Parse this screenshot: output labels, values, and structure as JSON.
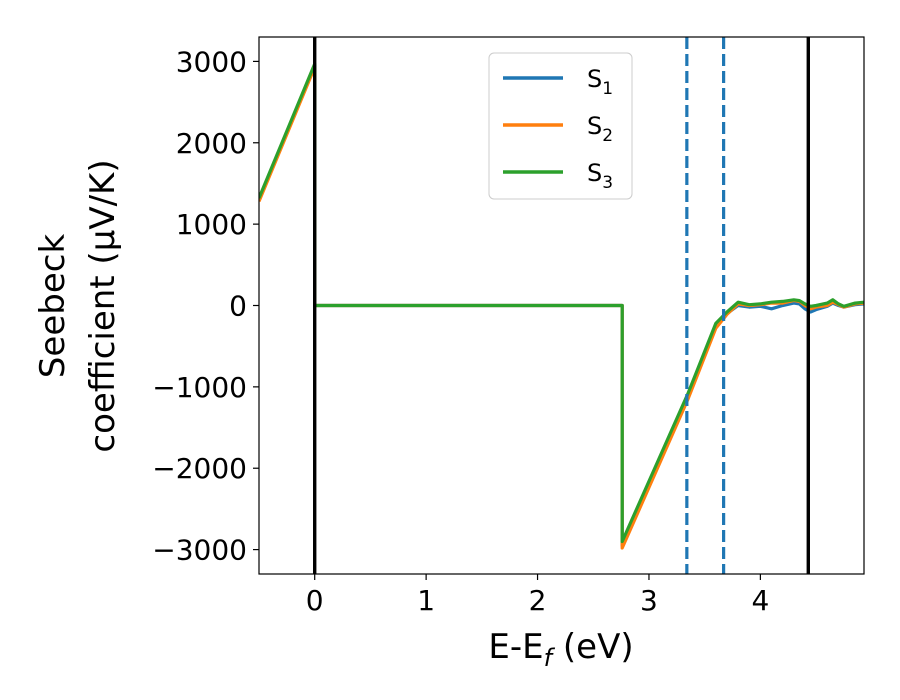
{
  "chart_data": {
    "type": "line",
    "xlabel": "E-E",
    "xlabel_sub": "f",
    "xlabel_unit": " (eV)",
    "ylabel_line1": "Seebeck",
    "ylabel_line2": "coefficient  (μV/K)",
    "xlim": [
      -0.5,
      4.93
    ],
    "ylim": [
      -3300,
      3300
    ],
    "xticks": [
      0,
      1,
      2,
      3,
      4
    ],
    "xtick_labels": [
      "0",
      "1",
      "2",
      "3",
      "4"
    ],
    "yticks": [
      3000,
      2000,
      1000,
      0,
      -1000,
      -2000,
      -3000
    ],
    "ytick_labels": [
      "3000",
      "2000",
      "1000",
      "0",
      "−1000",
      "−2000",
      "−3000"
    ],
    "grid": false,
    "legend_placement": "top-center",
    "series": [
      {
        "name": "S",
        "sub": "1",
        "color": "#1f77b4",
        "points": [
          [
            -0.5,
            1300
          ],
          [
            0,
            2950
          ],
          [
            0,
            0
          ],
          [
            2.76,
            0
          ],
          [
            2.76,
            -2950
          ],
          [
            3.35,
            -1100
          ],
          [
            3.6,
            -250
          ],
          [
            3.7,
            -100
          ],
          [
            3.8,
            0
          ],
          [
            3.9,
            -20
          ],
          [
            4.0,
            -10
          ],
          [
            4.1,
            -40
          ],
          [
            4.2,
            0
          ],
          [
            4.3,
            30
          ],
          [
            4.35,
            20
          ],
          [
            4.4,
            -40
          ],
          [
            4.45,
            -80
          ],
          [
            4.5,
            -50
          ],
          [
            4.6,
            -10
          ],
          [
            4.65,
            30
          ],
          [
            4.7,
            0
          ],
          [
            4.75,
            -20
          ],
          [
            4.85,
            10
          ],
          [
            4.93,
            20
          ]
        ]
      },
      {
        "name": "S",
        "sub": "2",
        "color": "#ff7f0e",
        "points": [
          [
            -0.5,
            1280
          ],
          [
            0,
            2930
          ],
          [
            0,
            0
          ],
          [
            2.76,
            0
          ],
          [
            2.76,
            -2980
          ],
          [
            3.35,
            -1150
          ],
          [
            3.6,
            -280
          ],
          [
            3.7,
            -110
          ],
          [
            3.8,
            20
          ],
          [
            3.9,
            0
          ],
          [
            4.0,
            10
          ],
          [
            4.1,
            30
          ],
          [
            4.2,
            30
          ],
          [
            4.3,
            60
          ],
          [
            4.35,
            50
          ],
          [
            4.4,
            0
          ],
          [
            4.45,
            -40
          ],
          [
            4.5,
            -20
          ],
          [
            4.6,
            0
          ],
          [
            4.65,
            40
          ],
          [
            4.7,
            10
          ],
          [
            4.75,
            -20
          ],
          [
            4.85,
            20
          ],
          [
            4.93,
            30
          ]
        ]
      },
      {
        "name": "S",
        "sub": "3",
        "color": "#2ca02c",
        "points": [
          [
            -0.5,
            1320
          ],
          [
            0,
            2970
          ],
          [
            0,
            0
          ],
          [
            2.76,
            0
          ],
          [
            2.76,
            -2900
          ],
          [
            3.35,
            -1080
          ],
          [
            3.6,
            -220
          ],
          [
            3.7,
            -80
          ],
          [
            3.8,
            40
          ],
          [
            3.9,
            10
          ],
          [
            4.0,
            20
          ],
          [
            4.1,
            40
          ],
          [
            4.2,
            50
          ],
          [
            4.3,
            70
          ],
          [
            4.35,
            60
          ],
          [
            4.4,
            20
          ],
          [
            4.45,
            -10
          ],
          [
            4.5,
            0
          ],
          [
            4.6,
            30
          ],
          [
            4.65,
            70
          ],
          [
            4.7,
            20
          ],
          [
            4.75,
            -10
          ],
          [
            4.85,
            30
          ],
          [
            4.93,
            40
          ]
        ]
      }
    ],
    "vlines": [
      {
        "x": 0,
        "style": "solid",
        "color": "#000000"
      },
      {
        "x": 4.43,
        "style": "solid",
        "color": "#000000"
      },
      {
        "x": 3.34,
        "style": "dashed",
        "color": "#1f77b4"
      },
      {
        "x": 3.67,
        "style": "dashed",
        "color": "#1f77b4"
      }
    ]
  }
}
